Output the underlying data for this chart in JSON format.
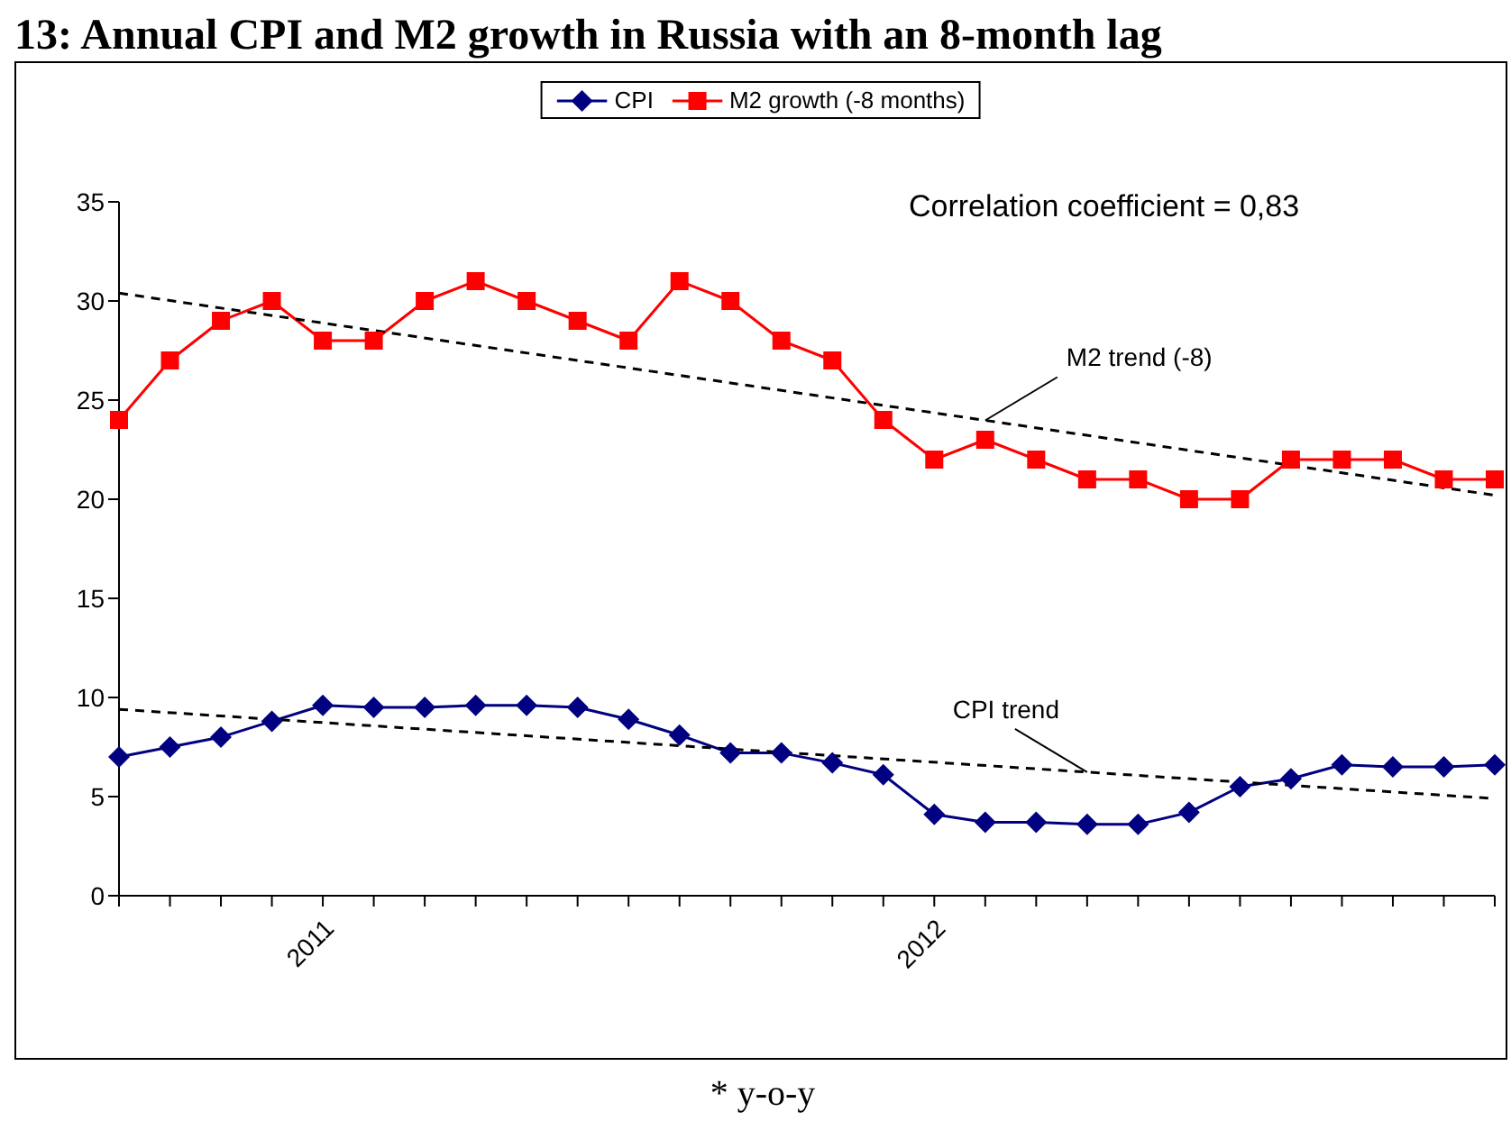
{
  "chart_data": {
    "type": "line",
    "title": "13: Annual CPI and M2 growth in Russia with an 8-month lag",
    "categories": [
      null,
      null,
      null,
      null,
      "2011",
      null,
      null,
      null,
      null,
      null,
      null,
      null,
      null,
      null,
      null,
      null,
      "2012",
      null,
      null,
      null,
      null,
      null,
      null,
      null,
      null,
      null,
      null,
      null
    ],
    "series": [
      {
        "name": "CPI",
        "color": "#000080",
        "marker": "diamond",
        "values": [
          7,
          7.5,
          8,
          8.8,
          9.6,
          9.5,
          9.5,
          9.6,
          9.6,
          9.5,
          8.9,
          8.1,
          7.2,
          7.2,
          6.7,
          6.1,
          4.1,
          3.7,
          3.7,
          3.6,
          3.6,
          4.2,
          5.5,
          5.9,
          6.6,
          6.5,
          6.5,
          6.6
        ]
      },
      {
        "name": "M2 growth (-8 months)",
        "color": "#ff0000",
        "marker": "square",
        "values": [
          24,
          27,
          29,
          30,
          28,
          28,
          30,
          31,
          30,
          29,
          28,
          31,
          30,
          28,
          27,
          24,
          22,
          23,
          22,
          21,
          21,
          20,
          20,
          22,
          22,
          22,
          21,
          21
        ]
      },
      {
        "name": "CPI trend",
        "type": "line",
        "color": "#000000",
        "marker": "none",
        "line_style": "dashed",
        "values": [
          9.4,
          null,
          null,
          null,
          null,
          null,
          null,
          null,
          null,
          null,
          null,
          null,
          null,
          null,
          null,
          null,
          null,
          null,
          null,
          null,
          null,
          null,
          null,
          null,
          null,
          null,
          null,
          4.9
        ]
      },
      {
        "name": "M2 trend (-8)",
        "type": "line",
        "color": "#000000",
        "marker": "none",
        "line_style": "dashed",
        "values": [
          30.4,
          null,
          null,
          null,
          null,
          null,
          null,
          null,
          null,
          null,
          null,
          null,
          null,
          null,
          null,
          null,
          null,
          null,
          null,
          null,
          null,
          null,
          null,
          null,
          null,
          null,
          null,
          20.2
        ]
      }
    ],
    "ylim": [
      0,
      35
    ],
    "yticks": [
      0,
      5,
      10,
      15,
      20,
      25,
      30,
      35
    ],
    "grid": false,
    "legend": "top",
    "annotations": [
      "Correlation coefficient = 0,83",
      "* y-o-y"
    ]
  }
}
